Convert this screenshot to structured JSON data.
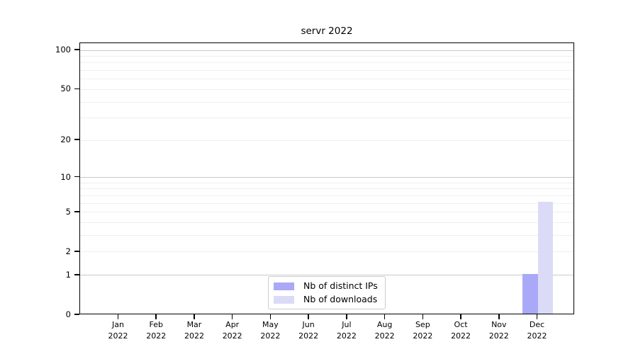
{
  "chart_data": {
    "type": "bar",
    "title": "servr 2022",
    "categories": [
      "Jan",
      "Feb",
      "Mar",
      "Apr",
      "May",
      "Jun",
      "Jul",
      "Aug",
      "Sep",
      "Oct",
      "Nov",
      "Dec"
    ],
    "category_year": "2022",
    "series": [
      {
        "name": "Nb of distinct IPs",
        "color": "#a9a9f8",
        "values": [
          0,
          0,
          0,
          0,
          0,
          0,
          0,
          0,
          0,
          0,
          0,
          1
        ]
      },
      {
        "name": "Nb of downloads",
        "color": "#dbdbf8",
        "values": [
          0,
          0,
          0,
          0,
          0,
          0,
          0,
          0,
          0,
          0,
          0,
          6
        ]
      }
    ],
    "yscale": "log1p",
    "ylim": [
      0,
      100
    ],
    "yticks": [
      0,
      1,
      2,
      5,
      10,
      20,
      50,
      100
    ],
    "grid_major": [
      1,
      10,
      100
    ],
    "grid_minor": [
      2,
      3,
      4,
      5,
      6,
      7,
      8,
      9,
      20,
      30,
      40,
      50,
      60,
      70,
      80,
      90
    ],
    "legend_position": "inside-bottom-center",
    "colors": {
      "grid_major": "#c9c9c9",
      "grid_minor": "#efefef",
      "axis": "#000000",
      "background": "#ffffff"
    }
  }
}
